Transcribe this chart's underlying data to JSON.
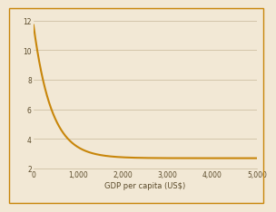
{
  "background_color": "#f2e8d5",
  "plot_bg_color": "#f2e8d5",
  "line_color": "#c8860a",
  "line_width": 1.5,
  "xlabel": "GDP per capita (US$)",
  "xlabel_fontsize": 6.0,
  "xlabel_color": "#5a4a2a",
  "tick_color": "#5a4a2a",
  "tick_fontsize": 5.5,
  "xlim": [
    0,
    5000
  ],
  "ylim": [
    2,
    12.5
  ],
  "yticks": [
    2,
    4,
    6,
    8,
    10,
    12
  ],
  "xticks": [
    0,
    1000,
    2000,
    3000,
    4000,
    5000
  ],
  "xtick_labels": [
    "0",
    "1,000",
    "2,000",
    "3,000",
    "4,000",
    "5,000"
  ],
  "grid_color": "#c8b89a",
  "grid_linewidth": 0.5,
  "curve_a": 9.0,
  "curve_b": 0.0025,
  "curve_c": 2.7,
  "border_color": "#c8860a",
  "border_linewidth": 1.0
}
